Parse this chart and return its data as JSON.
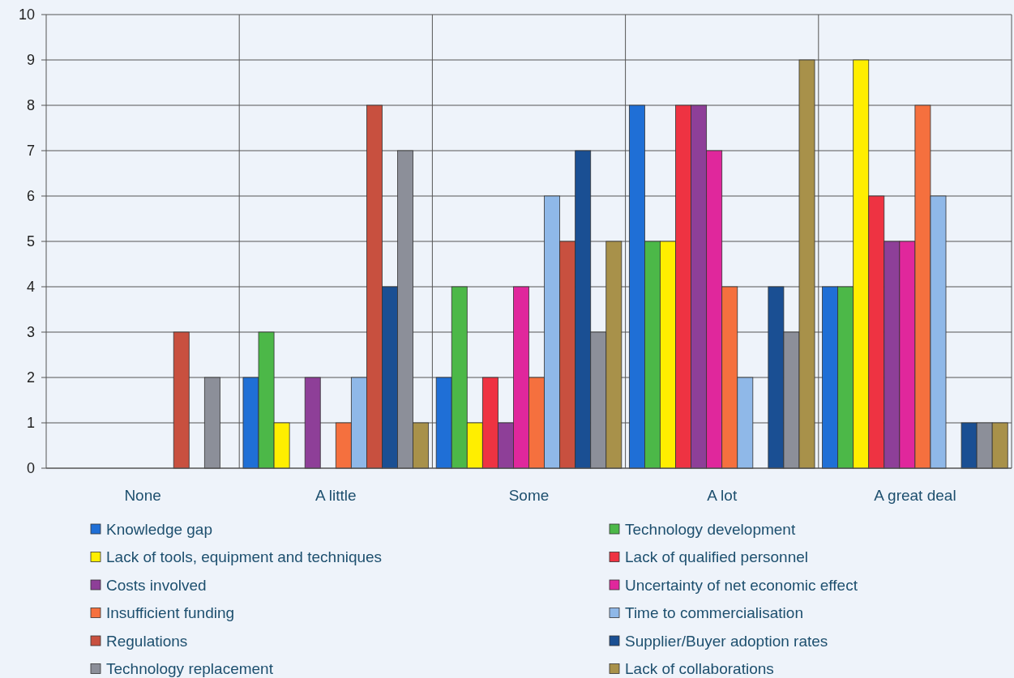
{
  "chart_data": {
    "type": "bar",
    "categories": [
      "None",
      "A little",
      "Some",
      "A lot",
      "A great deal"
    ],
    "series": [
      {
        "name": "Knowledge gap",
        "color": "#1f6fd6",
        "values": [
          0,
          2,
          2,
          8,
          4
        ]
      },
      {
        "name": "Technology development",
        "color": "#4cb848",
        "values": [
          0,
          3,
          4,
          5,
          4
        ]
      },
      {
        "name": "Lack of tools, equipment and techniques",
        "color": "#ffee00",
        "values": [
          0,
          1,
          1,
          5,
          9
        ]
      },
      {
        "name": "Lack of qualified personnel",
        "color": "#ee3342",
        "values": [
          0,
          0,
          2,
          8,
          6
        ]
      },
      {
        "name": "Costs involved",
        "color": "#8e3f98",
        "values": [
          0,
          2,
          1,
          8,
          5
        ]
      },
      {
        "name": "Uncertainty of net economic effect",
        "color": "#e0279c",
        "values": [
          0,
          0,
          4,
          7,
          5
        ]
      },
      {
        "name": "Insufficient funding",
        "color": "#f5703e",
        "values": [
          0,
          1,
          2,
          4,
          8
        ]
      },
      {
        "name": "Time to commercialisation",
        "color": "#8fb8e8",
        "values": [
          0,
          2,
          6,
          2,
          6
        ]
      },
      {
        "name": "Regulations",
        "color": "#c8503f",
        "values": [
          3,
          8,
          5,
          0,
          0
        ]
      },
      {
        "name": "Supplier/Buyer adoption rates",
        "color": "#1a4f93",
        "values": [
          0,
          4,
          7,
          4,
          1
        ]
      },
      {
        "name": "Technology replacement",
        "color": "#8c8f99",
        "values": [
          2,
          7,
          3,
          3,
          1
        ]
      },
      {
        "name": "Lack of collaborations",
        "color": "#a8914a",
        "values": [
          0,
          1,
          5,
          9,
          1
        ]
      }
    ],
    "ylim": [
      0,
      10
    ],
    "yticks": [
      0,
      1,
      2,
      3,
      4,
      5,
      6,
      7,
      8,
      9,
      10
    ],
    "grid": true,
    "legend": "bottom"
  }
}
